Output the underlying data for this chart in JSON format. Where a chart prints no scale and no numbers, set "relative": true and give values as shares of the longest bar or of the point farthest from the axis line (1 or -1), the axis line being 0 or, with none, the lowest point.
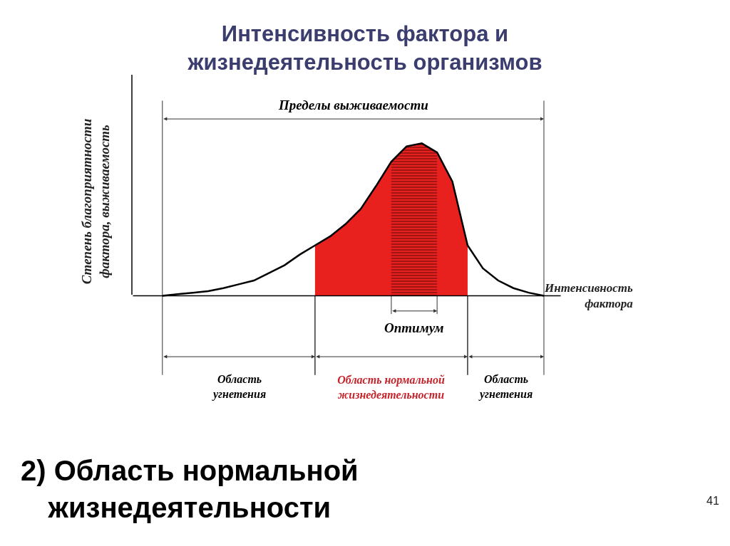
{
  "chart_data": {
    "type": "line",
    "title": "Интенсивность фактора и\nжизнедеятельность организмов",
    "subtitle": "2) Область нормальной\nжизнедеятельности",
    "xlabel": "Интенсивность\nфактора",
    "ylabel": "Степень благоприятности\nфактора, выживаемость",
    "relative": true,
    "categories": [
      null,
      null,
      null,
      null,
      null,
      null,
      null,
      null,
      null,
      null,
      null,
      null,
      null,
      null,
      null,
      null,
      null,
      null,
      null,
      null,
      null,
      null,
      null,
      null,
      null,
      null
    ],
    "series": [
      {
        "color": "#000000",
        "values": [
          0,
          0.01,
          0.02,
          0.03,
          0.05,
          0.075,
          0.1,
          0.15,
          0.2,
          0.27,
          0.33,
          0.39,
          0.47,
          0.57,
          0.72,
          0.88,
          0.98,
          1,
          0.94,
          0.75,
          0.33,
          0.18,
          0.1,
          0.05,
          0.02,
          0
        ]
      },
      {
        "type": "area",
        "color": "#e8201e",
        "values": [
          null,
          null,
          null,
          null,
          null,
          null,
          null,
          null,
          null,
          null,
          0.33,
          0.39,
          0.47,
          0.57,
          0.72,
          0.88,
          0.98,
          1,
          0.94,
          0.75,
          0.33,
          null,
          null,
          null,
          null,
          null
        ]
      },
      {
        "type": "area",
        "color": "#e8201e",
        "values": [
          null,
          null,
          null,
          null,
          null,
          null,
          null,
          null,
          null,
          null,
          null,
          null,
          null,
          null,
          null,
          0.88,
          0.98,
          1,
          0.94,
          null,
          null,
          null,
          null,
          null,
          null,
          null
        ]
      }
    ],
    "annotations": [
      "Пределы выживаемости",
      "Оптимум",
      "Область\nугнетения",
      "Область нормальной\nжизнедеятельности",
      "Область\nугнетения",
      "41"
    ]
  }
}
